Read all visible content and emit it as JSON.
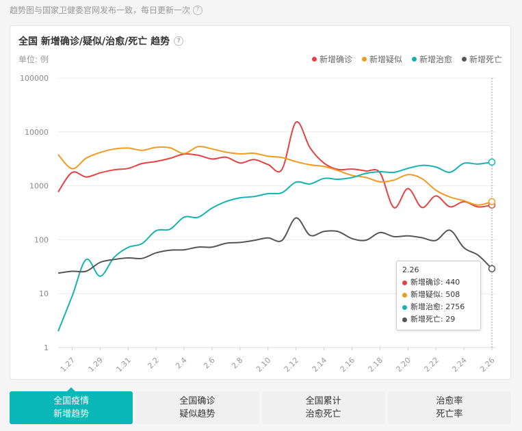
{
  "note": {
    "text": "趋势图与国家卫健委官网发布一致，每日更新一次",
    "icon": "question-icon"
  },
  "card": {
    "title": "全国 新增确诊/疑似/治愈/死亡 趋势",
    "title_icon": "question-icon",
    "unit": "单位: 例"
  },
  "chart_data": {
    "type": "line",
    "yscale": "log",
    "ylim": [
      1,
      100000
    ],
    "ytick_labels": [
      "100000",
      "10000",
      "1000",
      "100",
      "10",
      "1"
    ],
    "x": [
      "1.26",
      "1.27",
      "1.28",
      "1.29",
      "1.30",
      "1.31",
      "2.1",
      "2.2",
      "2.3",
      "2.4",
      "2.5",
      "2.6",
      "2.7",
      "2.8",
      "2.9",
      "2.10",
      "2.11",
      "2.12",
      "2.13",
      "2.14",
      "2.15",
      "2.16",
      "2.17",
      "2.18",
      "2.19",
      "2.20",
      "2.21",
      "2.22",
      "2.23",
      "2.24",
      "2.25",
      "2.26"
    ],
    "xtick_labels": [
      "1.27",
      "1.29",
      "1.31",
      "2.2",
      "2.4",
      "2.6",
      "2.8",
      "2.10",
      "2.12",
      "2.14",
      "2.16",
      "2.18",
      "2.20",
      "2.22",
      "2.24",
      "2.26"
    ],
    "legend_position": "top-right",
    "series": [
      {
        "name": "新增确诊",
        "color": "#e64040",
        "values": [
          769,
          1771,
          1459,
          1737,
          1982,
          2102,
          2590,
          2829,
          3235,
          3887,
          3694,
          3143,
          3399,
          2656,
          3062,
          2478,
          2015,
          15152,
          5090,
          2641,
          2009,
          2048,
          1886,
          1749,
          394,
          889,
          397,
          648,
          409,
          508,
          406,
          440
        ]
      },
      {
        "name": "新增疑似",
        "color": "#f09a1f",
        "values": [
          3806,
          2077,
          3248,
          4148,
          4812,
          5019,
          4562,
          5173,
          5072,
          3971,
          5328,
          4833,
          4214,
          3916,
          4008,
          3536,
          3342,
          2807,
          2450,
          2277,
          1918,
          1563,
          1432,
          1185,
          1277,
          1614,
          1361,
          826,
          620,
          530,
          439,
          508
        ]
      },
      {
        "name": "新增治愈",
        "color": "#14b3b1",
        "values": [
          2,
          9,
          43,
          21,
          47,
          72,
          85,
          147,
          157,
          262,
          261,
          387,
          510,
          600,
          632,
          716,
          744,
          1171,
          1081,
          1373,
          1323,
          1425,
          1701,
          1824,
          1779,
          2109,
          2393,
          2231,
          1785,
          2615,
          2535,
          2756
        ]
      },
      {
        "name": "新增死亡",
        "color": "#555555",
        "values": [
          24,
          26,
          26,
          38,
          43,
          46,
          45,
          57,
          64,
          65,
          73,
          73,
          86,
          89,
          97,
          108,
          97,
          254,
          121,
          143,
          142,
          105,
          98,
          136,
          114,
          118,
          109,
          97,
          150,
          71,
          52,
          29
        ]
      }
    ]
  },
  "tooltip": {
    "date": "2.26",
    "rows": [
      {
        "label": "新增确诊: 440",
        "color": "#e64040"
      },
      {
        "label": "新增疑似: 508",
        "color": "#f09a1f"
      },
      {
        "label": "新增治愈: 2756",
        "color": "#14b3b1"
      },
      {
        "label": "新增死亡: 29",
        "color": "#555555"
      }
    ]
  },
  "tabs": [
    {
      "line1": "全国疫情",
      "line2": "新增趋势",
      "active": true
    },
    {
      "line1": "全国确诊",
      "line2": "疑似趋势",
      "active": false
    },
    {
      "line1": "全国累计",
      "line2": "治愈死亡",
      "active": false
    },
    {
      "line1": "治愈率",
      "line2": "死亡率",
      "active": false
    }
  ]
}
